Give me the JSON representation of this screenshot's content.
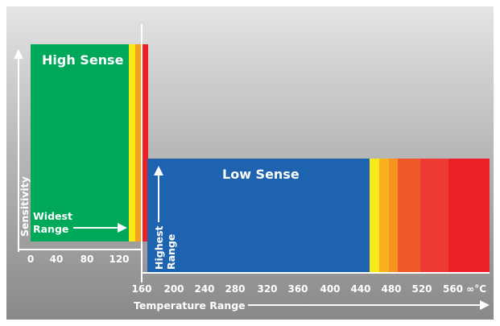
{
  "diagram": {
    "high_sense_label": "High Sense",
    "low_sense_label": "Low Sense",
    "sensitivity_axis_label": "Sensitivity",
    "widest_range_line1": "Widest",
    "widest_range_line2": "Range",
    "highest_range_line1": "Highest",
    "highest_range_line2": "Range",
    "temperature_axis_label": "Temperature Range",
    "left_ticks": [
      "0",
      "40",
      "80",
      "120"
    ],
    "right_ticks": [
      "160",
      "200",
      "240",
      "280",
      "320",
      "360",
      "400",
      "440",
      "480",
      "520",
      "560 ∞°C"
    ]
  },
  "colors": {
    "green": "#00a85a",
    "blue": "#1e63b0",
    "yellow": "#f6ea1b",
    "orange": "#f7a11b",
    "red_orange": "#f05a28",
    "red": "#ed2027",
    "panel_top": "#e4e4e4",
    "panel_bottom": "#898989"
  }
}
